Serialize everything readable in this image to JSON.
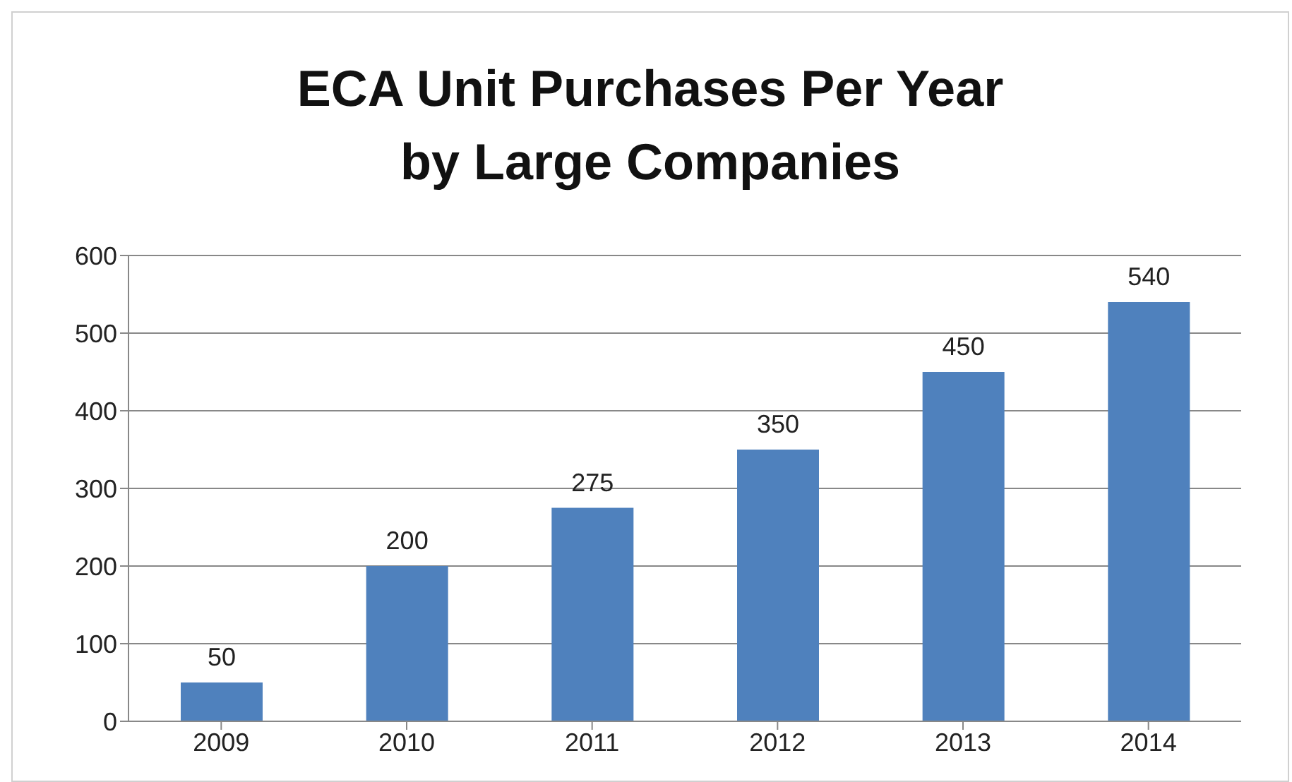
{
  "chart_data": {
    "type": "bar",
    "title": "ECA Unit Purchases Per Year\nby Large Companies",
    "categories": [
      "2009",
      "2010",
      "2011",
      "2012",
      "2013",
      "2014"
    ],
    "values": [
      50,
      200,
      275,
      350,
      450,
      540
    ],
    "color": "#4f81bd",
    "ylim": [
      0,
      600
    ],
    "yticks": [
      0,
      100,
      200,
      300,
      400,
      500,
      600
    ],
    "grid": "y",
    "data_labels": true
  }
}
